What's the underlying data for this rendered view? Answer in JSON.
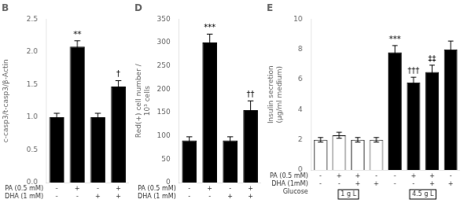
{
  "chart_data": [
    {
      "type": "bar",
      "title": "B",
      "categories": [
        "-\n-",
        "+\n-",
        "-\n+",
        "+\n+"
      ],
      "values": [
        1.0,
        2.08,
        1.0,
        1.47
      ],
      "errors": [
        0.06,
        0.09,
        0.06,
        0.09
      ],
      "color": "#000000",
      "ylabel": "c-casp3/t-casp3/β-Actin",
      "ylim": [
        0,
        2.5
      ],
      "yticks": [
        {
          "value": 0,
          "label": "0.0"
        },
        0.5,
        {
          "value": 1,
          "label": "1.0"
        },
        1.5,
        {
          "value": 2,
          "label": "2.0"
        },
        2.5
      ],
      "grid": false,
      "annotations": [
        {
          "text": "**",
          "x": 1,
          "y": 2.19
        },
        {
          "text": "†",
          "x": 3,
          "y": 1.58
        },
        {
          "text": "PA (0.5 mM)"
        },
        {
          "text": "DHA (1 mM)"
        }
      ]
    },
    {
      "type": "bar",
      "title": "D",
      "categories": [
        "-\n-",
        "+\n-",
        "-\n+",
        "+\n+"
      ],
      "values": [
        90,
        300,
        90,
        155
      ],
      "errors": [
        8,
        18,
        8,
        20
      ],
      "color": "#000000",
      "ylabel": "Red(+) cell number /\n10³ cells",
      "ylim": [
        0,
        350
      ],
      "yticks": [
        0,
        50,
        100,
        150,
        200,
        250,
        300,
        350
      ],
      "grid": false,
      "annotations": [
        {
          "text": "***",
          "x": 1,
          "y": 322
        },
        {
          "text": "††",
          "x": 3,
          "y": 178
        },
        {
          "text": "PA (0.5 mM)"
        },
        {
          "text": "DHA (1 mM)"
        }
      ]
    },
    {
      "type": "bar",
      "title": "E",
      "categories": [
        "-\n-",
        "+\n-",
        "+\n+",
        "-\n+",
        "-\n-",
        "+\n-",
        "+\n+",
        "-\n+"
      ],
      "series": [
        {
          "name": "1 g L",
          "color": "#ffffff",
          "values": [
            2.0,
            2.3,
            2.0,
            2.0,
            null,
            null,
            null,
            null
          ],
          "errors": [
            0.15,
            0.2,
            0.15,
            0.15,
            null,
            null,
            null,
            null
          ]
        },
        {
          "name": "4.5 g L",
          "color": "#000000",
          "values": [
            null,
            null,
            null,
            null,
            7.8,
            5.8,
            6.5,
            8.0
          ],
          "errors": [
            null,
            null,
            null,
            null,
            0.45,
            0.35,
            0.45,
            0.55
          ]
        }
      ],
      "ylabel": "Insulin secretion\n(μg/ml medium)",
      "ylim": [
        0,
        10
      ],
      "yticks": [
        0,
        2,
        4,
        6,
        8,
        10
      ],
      "grid": false,
      "annotations": [
        {
          "text": "***",
          "x": 4,
          "y": 8.35
        },
        {
          "text": "†††",
          "x": 5,
          "y": 6.25
        },
        {
          "text": "‡‡",
          "x": 6,
          "y": 7.05
        },
        {
          "text": "PA (0.5 mM)"
        },
        {
          "text": "DHA (1mM)"
        },
        {
          "text": "Glucose"
        }
      ]
    }
  ]
}
